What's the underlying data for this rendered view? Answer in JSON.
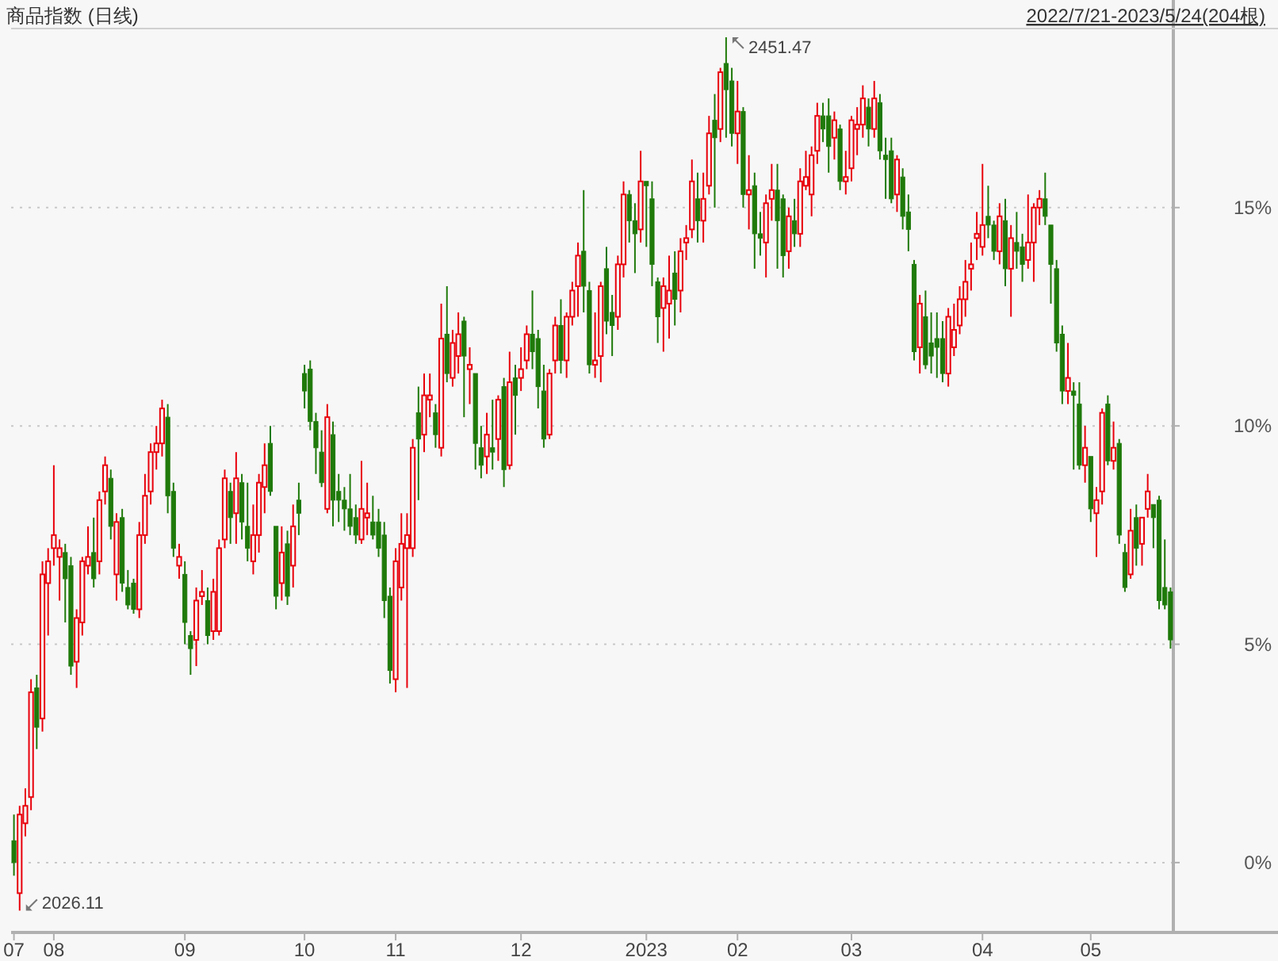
{
  "chart_data": {
    "type": "candlestick",
    "title": "商品指数 (日线)",
    "subtitle": "2022/7/21-2023/5/24(204根)",
    "categories": [
      "07",
      null,
      null,
      null,
      null,
      null,
      null,
      "08",
      null,
      null,
      null,
      null,
      null,
      null,
      null,
      null,
      null,
      null,
      null,
      null,
      null,
      null,
      null,
      null,
      null,
      null,
      null,
      null,
      null,
      null,
      "09",
      null,
      null,
      null,
      null,
      null,
      null,
      null,
      null,
      null,
      null,
      null,
      null,
      null,
      null,
      null,
      null,
      null,
      null,
      null,
      null,
      "10",
      null,
      null,
      null,
      null,
      null,
      null,
      null,
      null,
      null,
      null,
      null,
      null,
      null,
      null,
      null,
      "11",
      null,
      null,
      null,
      null,
      null,
      null,
      null,
      null,
      null,
      null,
      null,
      null,
      null,
      null,
      null,
      null,
      null,
      null,
      null,
      null,
      null,
      "12",
      null,
      null,
      null,
      null,
      null,
      null,
      null,
      null,
      null,
      null,
      null,
      null,
      null,
      null,
      null,
      null,
      null,
      null,
      null,
      null,
      null,
      "2023",
      null,
      null,
      null,
      null,
      null,
      null,
      null,
      null,
      null,
      null,
      null,
      null,
      null,
      null,
      null,
      "02",
      null,
      null,
      null,
      null,
      null,
      null,
      null,
      null,
      null,
      null,
      null,
      null,
      null,
      null,
      null,
      null,
      null,
      null,
      null,
      "03",
      null,
      null,
      null,
      null,
      null,
      null,
      null,
      null,
      null,
      null,
      null,
      null,
      null,
      null,
      null,
      null,
      null,
      null,
      null,
      null,
      null,
      null,
      "04",
      null,
      null,
      null,
      null,
      null,
      null,
      null,
      null,
      null,
      null,
      null,
      null,
      null,
      null,
      null,
      null,
      null,
      null,
      "05",
      null,
      null,
      null,
      null,
      null,
      null,
      null,
      null,
      null,
      null,
      null,
      null,
      null,
      null
    ],
    "ohlc": [
      [
        0.5,
        1.1,
        -0.3,
        0.0
      ],
      [
        -0.7,
        1.3,
        -1.1,
        1.1
      ],
      [
        0.9,
        1.7,
        0.6,
        1.3
      ],
      [
        1.5,
        4.2,
        1.2,
        3.9
      ],
      [
        4.0,
        4.3,
        2.6,
        3.1
      ],
      [
        3.3,
        6.9,
        3.0,
        6.6
      ],
      [
        6.4,
        7.2,
        5.2,
        6.9
      ],
      [
        7.2,
        9.1,
        6.8,
        7.5
      ],
      [
        7.0,
        7.4,
        6.0,
        7.2
      ],
      [
        7.1,
        7.3,
        5.5,
        6.5
      ],
      [
        6.8,
        7.0,
        4.3,
        4.5
      ],
      [
        4.6,
        5.8,
        4.0,
        5.6
      ],
      [
        5.5,
        7.0,
        5.2,
        6.9
      ],
      [
        6.8,
        7.7,
        6.6,
        7.0
      ],
      [
        7.1,
        7.9,
        6.3,
        6.5
      ],
      [
        6.9,
        8.5,
        6.6,
        8.3
      ],
      [
        8.5,
        9.3,
        8.2,
        9.1
      ],
      [
        8.8,
        9.0,
        7.4,
        7.7
      ],
      [
        6.6,
        8.0,
        6.0,
        7.8
      ],
      [
        7.9,
        8.1,
        6.2,
        6.4
      ],
      [
        6.3,
        6.7,
        5.8,
        5.9
      ],
      [
        6.4,
        6.5,
        5.7,
        5.8
      ],
      [
        5.8,
        7.8,
        5.6,
        7.5
      ],
      [
        7.5,
        8.9,
        7.3,
        8.4
      ],
      [
        8.5,
        9.6,
        8.2,
        9.4
      ],
      [
        9.4,
        10.0,
        9.0,
        9.6
      ],
      [
        9.6,
        10.6,
        9.3,
        10.4
      ],
      [
        10.2,
        10.5,
        8.0,
        8.4
      ],
      [
        8.5,
        8.7,
        7.0,
        7.2
      ],
      [
        6.8,
        7.3,
        6.5,
        7.0
      ],
      [
        6.6,
        6.9,
        5.0,
        5.5
      ],
      [
        5.2,
        5.3,
        4.3,
        4.9
      ],
      [
        5.1,
        6.3,
        4.5,
        6.0
      ],
      [
        6.1,
        6.7,
        5.9,
        6.2
      ],
      [
        6.0,
        6.3,
        5.0,
        5.2
      ],
      [
        5.3,
        6.5,
        5.1,
        6.2
      ],
      [
        5.3,
        7.4,
        5.2,
        7.2
      ],
      [
        7.4,
        9.0,
        7.2,
        8.8
      ],
      [
        8.5,
        8.7,
        7.3,
        7.9
      ],
      [
        8.0,
        9.4,
        7.3,
        8.8
      ],
      [
        8.7,
        8.9,
        7.4,
        7.8
      ],
      [
        7.7,
        8.7,
        6.9,
        7.2
      ],
      [
        6.9,
        8.2,
        6.6,
        7.5
      ],
      [
        7.5,
        8.9,
        7.1,
        8.7
      ],
      [
        8.6,
        9.6,
        8.0,
        9.1
      ],
      [
        9.6,
        10.0,
        8.4,
        8.5
      ],
      [
        7.7,
        7.7,
        5.8,
        6.1
      ],
      [
        6.4,
        7.7,
        6.0,
        7.1
      ],
      [
        7.3,
        7.6,
        5.9,
        6.1
      ],
      [
        6.8,
        8.2,
        6.3,
        7.7
      ],
      [
        8.3,
        8.7,
        7.5,
        8.0
      ],
      [
        11.2,
        11.4,
        10.4,
        10.8
      ],
      [
        11.3,
        11.5,
        9.9,
        10.1
      ],
      [
        10.1,
        10.3,
        8.9,
        9.5
      ],
      [
        9.4,
        9.9,
        8.6,
        8.7
      ],
      [
        8.1,
        10.5,
        8.0,
        10.2
      ],
      [
        9.8,
        10.1,
        7.7,
        8.3
      ],
      [
        8.5,
        8.9,
        7.8,
        8.3
      ],
      [
        8.3,
        8.6,
        7.6,
        8.1
      ],
      [
        8.1,
        8.9,
        7.5,
        7.7
      ],
      [
        7.9,
        8.2,
        7.3,
        7.5
      ],
      [
        7.4,
        9.2,
        7.3,
        8.1
      ],
      [
        7.9,
        8.7,
        7.5,
        8.0
      ],
      [
        7.8,
        8.4,
        7.4,
        7.5
      ],
      [
        7.8,
        8.1,
        7.0,
        7.2
      ],
      [
        7.5,
        7.8,
        5.6,
        6.0
      ],
      [
        6.1,
        6.3,
        4.1,
        4.4
      ],
      [
        4.2,
        7.2,
        3.9,
        6.9
      ],
      [
        6.3,
        8.0,
        6.0,
        7.3
      ],
      [
        7.2,
        8.0,
        4.0,
        7.5
      ],
      [
        7.2,
        9.7,
        7.0,
        9.5
      ],
      [
        10.3,
        10.9,
        8.3,
        9.7
      ],
      [
        9.8,
        11.2,
        9.4,
        10.7
      ],
      [
        10.6,
        11.2,
        10.2,
        10.7
      ],
      [
        10.3,
        10.5,
        9.5,
        9.8
      ],
      [
        9.5,
        12.8,
        9.3,
        12.0
      ],
      [
        12.1,
        13.2,
        11.0,
        11.2
      ],
      [
        11.1,
        12.2,
        10.9,
        11.9
      ],
      [
        11.6,
        12.6,
        11.2,
        12.1
      ],
      [
        12.4,
        12.5,
        10.2,
        11.6
      ],
      [
        11.3,
        11.8,
        10.5,
        11.4
      ],
      [
        11.2,
        11.2,
        9.0,
        9.6
      ],
      [
        9.5,
        10.0,
        8.8,
        9.1
      ],
      [
        9.3,
        10.3,
        8.9,
        9.8
      ],
      [
        9.5,
        10.6,
        9.0,
        9.4
      ],
      [
        9.7,
        10.7,
        9.2,
        10.6
      ],
      [
        10.9,
        11.1,
        8.6,
        9.0
      ],
      [
        9.1,
        11.7,
        9.0,
        11.0
      ],
      [
        11.1,
        11.4,
        9.8,
        10.7
      ],
      [
        11.1,
        11.8,
        10.8,
        11.3
      ],
      [
        11.5,
        12.3,
        11.3,
        12.1
      ],
      [
        12.1,
        13.1,
        11.3,
        11.7
      ],
      [
        12.0,
        12.2,
        10.4,
        10.9
      ],
      [
        10.8,
        11.4,
        9.5,
        9.7
      ],
      [
        9.8,
        11.3,
        9.7,
        11.2
      ],
      [
        11.5,
        12.5,
        11.2,
        12.3
      ],
      [
        12.3,
        12.9,
        11.2,
        11.5
      ],
      [
        11.5,
        12.6,
        11.1,
        12.5
      ],
      [
        12.5,
        13.3,
        12.3,
        13.1
      ],
      [
        13.2,
        14.2,
        12.5,
        13.9
      ],
      [
        14.0,
        15.4,
        12.6,
        13.2
      ],
      [
        13.1,
        13.3,
        11.2,
        11.4
      ],
      [
        11.4,
        12.6,
        11.1,
        11.5
      ],
      [
        11.6,
        13.3,
        11.0,
        13.2
      ],
      [
        13.6,
        14.1,
        12.1,
        12.4
      ],
      [
        12.6,
        13.0,
        11.6,
        12.3
      ],
      [
        12.5,
        13.9,
        12.2,
        13.7
      ],
      [
        13.7,
        15.6,
        13.4,
        15.3
      ],
      [
        15.3,
        15.4,
        14.2,
        14.7
      ],
      [
        14.7,
        15.1,
        13.5,
        14.4
      ],
      [
        14.5,
        16.3,
        14.2,
        15.6
      ],
      [
        15.6,
        15.6,
        14.1,
        15.5
      ],
      [
        15.2,
        15.6,
        13.2,
        13.7
      ],
      [
        13.3,
        13.4,
        11.9,
        12.5
      ],
      [
        12.7,
        13.4,
        11.7,
        13.2
      ],
      [
        12.8,
        13.9,
        12.0,
        13.1
      ],
      [
        13.5,
        14.0,
        12.3,
        12.9
      ],
      [
        13.1,
        14.3,
        12.6,
        14.0
      ],
      [
        14.2,
        14.6,
        13.8,
        14.3
      ],
      [
        14.5,
        16.1,
        14.3,
        15.6
      ],
      [
        15.2,
        15.8,
        14.2,
        14.7
      ],
      [
        14.7,
        15.8,
        14.2,
        15.2
      ],
      [
        15.5,
        17.1,
        15.3,
        16.7
      ],
      [
        17.0,
        17.6,
        15.0,
        16.6
      ],
      [
        16.8,
        18.2,
        16.5,
        18.1
      ],
      [
        18.3,
        18.9,
        16.6,
        17.7
      ],
      [
        17.9,
        18.2,
        16.4,
        16.7
      ],
      [
        16.7,
        17.9,
        16.0,
        17.2
      ],
      [
        17.2,
        17.3,
        15.0,
        15.3
      ],
      [
        15.3,
        16.2,
        14.5,
        15.4
      ],
      [
        15.5,
        15.8,
        13.6,
        14.4
      ],
      [
        14.4,
        14.9,
        13.9,
        14.3
      ],
      [
        14.2,
        15.3,
        13.4,
        15.1
      ],
      [
        15.2,
        16.0,
        14.7,
        15.4
      ],
      [
        15.4,
        16.0,
        13.6,
        14.7
      ],
      [
        15.2,
        15.3,
        13.4,
        13.9
      ],
      [
        14.0,
        15.0,
        13.6,
        14.8
      ],
      [
        14.7,
        15.2,
        14.1,
        14.4
      ],
      [
        14.4,
        15.9,
        14.1,
        15.6
      ],
      [
        15.5,
        16.3,
        15.4,
        15.7
      ],
      [
        15.3,
        16.4,
        14.8,
        16.2
      ],
      [
        16.3,
        17.4,
        16.0,
        17.1
      ],
      [
        17.1,
        17.4,
        16.5,
        16.8
      ],
      [
        17.1,
        17.5,
        15.8,
        16.4
      ],
      [
        16.6,
        17.2,
        16.1,
        17.0
      ],
      [
        16.8,
        16.9,
        15.4,
        15.6
      ],
      [
        15.6,
        16.3,
        15.3,
        15.7
      ],
      [
        15.9,
        17.1,
        15.6,
        17.0
      ],
      [
        16.8,
        17.3,
        16.2,
        16.9
      ],
      [
        16.9,
        17.8,
        16.6,
        17.5
      ],
      [
        17.3,
        17.5,
        16.4,
        16.8
      ],
      [
        16.8,
        17.9,
        16.6,
        17.5
      ],
      [
        17.4,
        17.6,
        16.1,
        16.3
      ],
      [
        16.2,
        16.6,
        15.2,
        16.1
      ],
      [
        16.3,
        16.6,
        15.1,
        15.2
      ],
      [
        15.3,
        16.2,
        14.9,
        16.1
      ],
      [
        15.7,
        15.9,
        14.5,
        14.8
      ],
      [
        14.9,
        15.3,
        14.0,
        14.5
      ],
      [
        13.7,
        13.8,
        11.5,
        11.7
      ],
      [
        11.8,
        13.0,
        11.2,
        12.8
      ],
      [
        12.5,
        13.1,
        11.3,
        11.4
      ],
      [
        11.9,
        12.6,
        11.2,
        11.6
      ],
      [
        12.0,
        12.6,
        11.1,
        11.8
      ],
      [
        12.0,
        12.4,
        11.0,
        11.2
      ],
      [
        11.2,
        12.7,
        10.9,
        12.5
      ],
      [
        11.8,
        12.8,
        11.6,
        12.2
      ],
      [
        12.3,
        13.2,
        12.1,
        12.9
      ],
      [
        12.9,
        13.8,
        12.5,
        13.3
      ],
      [
        13.6,
        14.2,
        13.1,
        13.7
      ],
      [
        14.3,
        14.9,
        13.8,
        14.4
      ],
      [
        14.1,
        16.0,
        13.9,
        14.6
      ],
      [
        14.8,
        15.5,
        14.3,
        14.6
      ],
      [
        14.6,
        14.7,
        13.8,
        14.0
      ],
      [
        14.0,
        15.1,
        13.7,
        14.8
      ],
      [
        14.7,
        15.2,
        13.2,
        13.6
      ],
      [
        13.6,
        14.6,
        12.5,
        14.3
      ],
      [
        14.2,
        14.9,
        13.6,
        14.0
      ],
      [
        14.1,
        14.4,
        13.3,
        13.7
      ],
      [
        13.8,
        15.3,
        13.6,
        14.2
      ],
      [
        14.2,
        15.1,
        13.3,
        15.0
      ],
      [
        15.0,
        15.4,
        14.6,
        15.2
      ],
      [
        15.2,
        15.8,
        14.6,
        14.8
      ],
      [
        14.6,
        14.6,
        12.8,
        13.7
      ],
      [
        13.6,
        13.8,
        11.7,
        11.9
      ],
      [
        12.1,
        12.3,
        10.5,
        10.8
      ],
      [
        10.8,
        11.9,
        10.5,
        11.1
      ],
      [
        10.8,
        11.0,
        9.0,
        10.7
      ],
      [
        10.5,
        11.0,
        9.0,
        9.1
      ],
      [
        9.1,
        10.0,
        8.7,
        9.5
      ],
      [
        9.3,
        9.3,
        7.8,
        8.1
      ],
      [
        8.0,
        8.6,
        7.0,
        8.3
      ],
      [
        8.5,
        10.4,
        8.2,
        10.3
      ],
      [
        10.5,
        10.7,
        9.1,
        9.2
      ],
      [
        9.2,
        10.1,
        9.0,
        9.5
      ],
      [
        9.6,
        9.7,
        7.3,
        7.5
      ],
      [
        7.1,
        7.3,
        6.2,
        6.3
      ],
      [
        6.6,
        8.1,
        6.5,
        7.6
      ],
      [
        7.9,
        8.2,
        6.8,
        7.2
      ],
      [
        7.3,
        7.9,
        6.8,
        7.9
      ],
      [
        8.1,
        8.9,
        7.9,
        8.5
      ],
      [
        8.2,
        8.2,
        7.2,
        7.9
      ],
      [
        8.3,
        8.4,
        5.8,
        6.0
      ],
      [
        6.3,
        7.4,
        5.8,
        5.9
      ],
      [
        6.2,
        6.3,
        4.9,
        5.1
      ]
    ],
    "ylim": [
      -1.6,
      19.1
    ],
    "yticks": [
      {
        "value": 0,
        "label": "0%"
      },
      {
        "value": 5,
        "label": "5%"
      },
      {
        "value": 10,
        "label": "10%"
      },
      {
        "value": 15,
        "label": "15%"
      }
    ],
    "grid": "y",
    "annotations": [
      "2451.47",
      "2026.11"
    ]
  }
}
